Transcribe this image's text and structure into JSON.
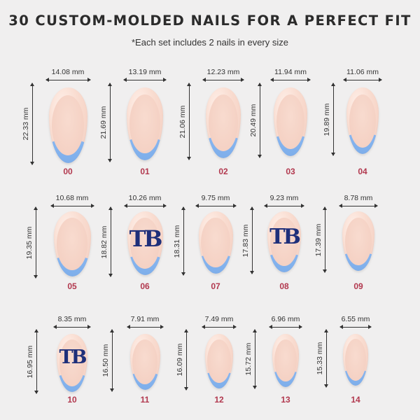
{
  "title": "30 CUSTOM-MOLDED NAILS FOR A PERFECT FIT",
  "subtitle": "*Each set includes 2 nails in every size",
  "colors": {
    "tip": "#8ab8f2",
    "nail": "#f6d4c6",
    "size_code": "#b2394f",
    "logo": "#1e2f7a",
    "background": "#f0efef"
  },
  "nails": [
    {
      "code": "00",
      "width": "14.08 mm",
      "length": "22.33 mm",
      "logo": ""
    },
    {
      "code": "01",
      "width": "13.19 mm",
      "length": "21.69 mm",
      "logo": ""
    },
    {
      "code": "02",
      "width": "12.23 mm",
      "length": "21.06 mm",
      "logo": ""
    },
    {
      "code": "03",
      "width": "11.94 mm",
      "length": "20.49 mm",
      "logo": ""
    },
    {
      "code": "04",
      "width": "11.06 mm",
      "length": "19.89 mm",
      "logo": ""
    },
    {
      "code": "05",
      "width": "10.68 mm",
      "length": "19.35 mm",
      "logo": ""
    },
    {
      "code": "06",
      "width": "10.26 mm",
      "length": "18.82 mm",
      "logo": "TB"
    },
    {
      "code": "07",
      "width": "9.75 mm",
      "length": "18.31 mm",
      "logo": ""
    },
    {
      "code": "08",
      "width": "9.23 mm",
      "length": "17.83 mm",
      "logo": "TB"
    },
    {
      "code": "09",
      "width": "8.78 mm",
      "length": "17.39 mm",
      "logo": ""
    },
    {
      "code": "10",
      "width": "8.35 mm",
      "length": "16.95 mm",
      "logo": "TB"
    },
    {
      "code": "11",
      "width": "7.91 mm",
      "length": "16.50 mm",
      "logo": ""
    },
    {
      "code": "12",
      "width": "7.49 mm",
      "length": "16.09 mm",
      "logo": ""
    },
    {
      "code": "13",
      "width": "6.96 mm",
      "length": "15.72 mm",
      "logo": ""
    },
    {
      "code": "14",
      "width": "6.55 mm",
      "length": "15.33 mm",
      "logo": ""
    }
  ]
}
